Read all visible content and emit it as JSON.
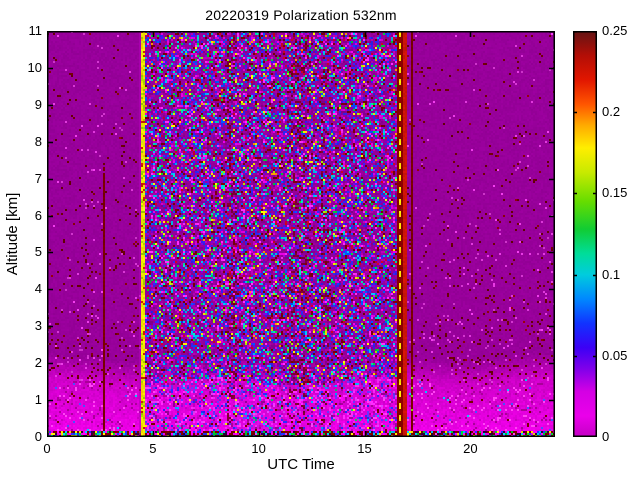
{
  "chart_data": {
    "type": "heatmap",
    "title": "20220319 Polarization 532nm",
    "xlabel": "UTC Time",
    "ylabel": "Altitude [km]",
    "x_range": [
      0,
      24
    ],
    "y_range": [
      0,
      11
    ],
    "x_ticks": [
      "0",
      "5",
      "10",
      "15",
      "20"
    ],
    "x_tick_values": [
      0,
      5,
      10,
      15,
      20
    ],
    "y_ticks": [
      "0",
      "1",
      "2",
      "3",
      "4",
      "5",
      "6",
      "7",
      "8",
      "9",
      "10",
      "11"
    ],
    "y_tick_values": [
      0,
      1,
      2,
      3,
      4,
      5,
      6,
      7,
      8,
      9,
      10,
      11
    ],
    "grid": false,
    "legend": "none",
    "colorbar": {
      "position": "right",
      "range": [
        0,
        0.25
      ],
      "ticks": [
        "0",
        "0.05",
        "0.1",
        "0.15",
        "0.2",
        "0.25"
      ],
      "tick_values": [
        0,
        0.05,
        0.1,
        0.15,
        0.2,
        0.25
      ],
      "colormap_stops": [
        [
          0.0,
          "#c400c4"
        ],
        [
          0.013,
          "#ea00ea"
        ],
        [
          0.028,
          "#d400e4"
        ],
        [
          0.042,
          "#8000ea"
        ],
        [
          0.055,
          "#3c00f5"
        ],
        [
          0.07,
          "#1133ff"
        ],
        [
          0.085,
          "#0088ff"
        ],
        [
          0.1,
          "#00ccdd"
        ],
        [
          0.113,
          "#00dd99"
        ],
        [
          0.128,
          "#11cc33"
        ],
        [
          0.145,
          "#66dd00"
        ],
        [
          0.163,
          "#c8ea00"
        ],
        [
          0.178,
          "#ffee00"
        ],
        [
          0.192,
          "#ffaa00"
        ],
        [
          0.205,
          "#ff5500"
        ],
        [
          0.22,
          "#e11600"
        ],
        [
          0.235,
          "#b30e06"
        ],
        [
          0.25,
          "#641414"
        ]
      ]
    },
    "content": {
      "seed": 20220319,
      "background_color": "#98009b",
      "low_band": {
        "top_km": 1.5,
        "fade_km": 0.65,
        "color_bottom": "#f200ec",
        "color_top": "#cf00c9",
        "blue_patch": {
          "t0": 8.8,
          "t1": 10.7,
          "a1": 1.3,
          "color": "#b128e8",
          "strength": 0.4
        }
      },
      "noise_region": {
        "t0": 4.62,
        "t1": 16.55,
        "density_high": 0.78,
        "density_low": 0.6,
        "palette": [
          [
            "#8a0092",
            26
          ],
          [
            "#b300b3",
            10
          ],
          [
            "#e000e0",
            7
          ],
          [
            "#ff2bff",
            5
          ],
          [
            "#7a00d8",
            6
          ],
          [
            "#3322ee",
            12
          ],
          [
            "#0055ff",
            5
          ],
          [
            "#00bbee",
            6
          ],
          [
            "#00e5b2",
            3
          ],
          [
            "#00cc33",
            3
          ],
          [
            "#a0e800",
            2
          ],
          [
            "#ffee00",
            2
          ],
          [
            "#ff9900",
            1
          ],
          [
            "#cc0022",
            3
          ],
          [
            "#770008",
            9
          ]
        ],
        "palette_low": [
          [
            "#ee00e8",
            28
          ],
          [
            "#ff2bff",
            14
          ],
          [
            "#cc00cc",
            14
          ],
          [
            "#6633ff",
            10
          ],
          [
            "#2b2bff",
            9
          ],
          [
            "#00aaff",
            4
          ],
          [
            "#990099",
            7
          ],
          [
            "#dd44ff",
            5
          ],
          [
            "#7a0000",
            4
          ],
          [
            "#00cc66",
            2
          ],
          [
            "#ffee00",
            2
          ],
          [
            "#aa00ee",
            1
          ]
        ]
      },
      "speckles": {
        "high": {
          "density_base": 0.03,
          "density_low_alt": 0.14,
          "colors": [
            [
              "#6b0005",
              62
            ],
            [
              "#e03bdd",
              30
            ],
            [
              "#8d0008",
              8
            ]
          ]
        },
        "lowband": {
          "density": 0.16,
          "colors": [
            [
              "#aa0099",
              34
            ],
            [
              "#ff44f4",
              34
            ],
            [
              "#c800c0",
              16
            ],
            [
              "#7a0000",
              8
            ],
            [
              "#4455ff",
              5
            ],
            [
              "#00ccff",
              3
            ]
          ]
        }
      },
      "dark_streaks": {
        "color": "#7c0030",
        "ranges": [
          {
            "t0": 8.55,
            "t1": 9.0,
            "p": 0.2
          },
          {
            "t0": 11.35,
            "t1": 12.35,
            "p": 0.16
          },
          {
            "t0": 12.95,
            "t1": 13.3,
            "p": 0.12
          }
        ]
      },
      "bottom_line": {
        "height_km": 0.16,
        "density": 0.92,
        "palette": [
          [
            "#7a0000",
            34
          ],
          [
            "#2233ff",
            12
          ],
          [
            "#00ccff",
            10
          ],
          [
            "#00cc33",
            10
          ],
          [
            "#ffee00",
            8
          ],
          [
            "#ff00ff",
            12
          ],
          [
            "#30003a",
            14
          ]
        ]
      },
      "stripes": [
        {
          "name": "faint-light-column",
          "t0": 4.3,
          "t1": 4.4,
          "a0": 0,
          "a1": 11,
          "color": "#b400bc",
          "blend": 0.55
        },
        {
          "name": "cal-line-0240",
          "t0": 2.62,
          "t1": 2.72,
          "a0": 0,
          "a1": 7.6,
          "fade_top_km": 0.6,
          "color": "#7a0000",
          "speckle_colors": [
            "#ffee00",
            "#00ccff",
            "#00cc33"
          ],
          "speckle_p": 0.1,
          "speckle_below_km": 2.0
        },
        {
          "name": "cal-stripe-yellow-0430",
          "t0": 4.4,
          "t1": 4.62,
          "a0": 0,
          "a1": 11,
          "color": "#f0e800",
          "mix": [
            [
              "#f0e800",
              58
            ],
            [
              "#9fd400",
              18
            ],
            [
              "#ffc400",
              10
            ],
            [
              "#d9ee22",
              8
            ],
            [
              "#cc2200",
              6
            ]
          ]
        },
        {
          "name": "cal-band-darkred-1635",
          "t0": 16.55,
          "t1": 16.78,
          "a0": 0,
          "a1": 11,
          "color": "#8b0000",
          "dash": {
            "t0": 16.62,
            "t1": 16.71,
            "color": "#ffe800",
            "on": 3,
            "off": 3
          }
        },
        {
          "name": "cal-stripe-red-1650",
          "t0": 16.8,
          "t1": 16.97,
          "a0": 0,
          "a1": 11,
          "color": "#cc1508"
        },
        {
          "name": "cal-line-1713",
          "t0": 17.16,
          "t1": 17.28,
          "a0": 0,
          "a1": 11,
          "color": "#7a0000",
          "speckle_colors": [
            "#ffee00",
            "#7ecf00"
          ],
          "speckle_p": 0.25,
          "speckle_below_km": 1.6
        }
      ]
    }
  }
}
